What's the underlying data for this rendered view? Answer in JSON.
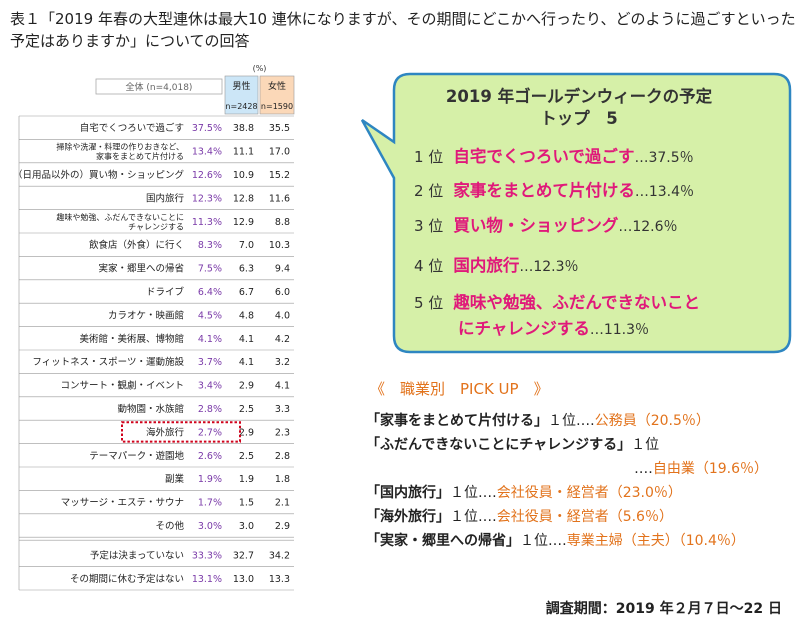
{
  "title": "表１「2019 年春の大型連休は最大10 連休になりますが、その期間にどこかへ行ったり、どのように過ごすといった予定はありますか」についての回答",
  "table": {
    "unit": "(%)",
    "overall_label": "全体 (n=4,018)",
    "male_label": "男性",
    "male_n": "n=2428",
    "female_label": "女性",
    "female_n": "n=1590"
  },
  "chart_data": {
    "type": "table",
    "columns": [
      "全体 (n=4,018)",
      "男性",
      "女性"
    ],
    "rows": [
      {
        "label": [
          "自宅でくつろいで過ごす"
        ],
        "total": "37.5%",
        "male": "38.8",
        "female": "35.5"
      },
      {
        "label": [
          "掃除や洗濯・料理の作りおきなど、",
          "家事をまとめて片付ける"
        ],
        "total": "13.4%",
        "male": "11.1",
        "female": "17.0"
      },
      {
        "label": [
          "（日用品以外の）買い物・ショッピング"
        ],
        "total": "12.6%",
        "male": "10.9",
        "female": "15.2"
      },
      {
        "label": [
          "国内旅行"
        ],
        "total": "12.3%",
        "male": "12.8",
        "female": "11.6"
      },
      {
        "label": [
          "趣味や勉強、ふだんできないことに",
          "チャレンジする"
        ],
        "total": "11.3%",
        "male": "12.9",
        "female": "8.8"
      },
      {
        "label": [
          "飲食店（外食）に行く"
        ],
        "total": "8.3%",
        "male": "7.0",
        "female": "10.3"
      },
      {
        "label": [
          "実家・郷里への帰省"
        ],
        "total": "7.5%",
        "male": "6.3",
        "female": "9.4"
      },
      {
        "label": [
          "ドライブ"
        ],
        "total": "6.4%",
        "male": "6.7",
        "female": "6.0"
      },
      {
        "label": [
          "カラオケ・映画館"
        ],
        "total": "4.5%",
        "male": "4.8",
        "female": "4.0"
      },
      {
        "label": [
          "美術館・美術展、博物館"
        ],
        "total": "4.1%",
        "male": "4.1",
        "female": "4.2"
      },
      {
        "label": [
          "フィットネス・スポーツ・運動施設"
        ],
        "total": "3.7%",
        "male": "4.1",
        "female": "3.2"
      },
      {
        "label": [
          "コンサート・観劇・イベント"
        ],
        "total": "3.4%",
        "male": "2.9",
        "female": "4.1"
      },
      {
        "label": [
          "動物園・水族館"
        ],
        "total": "2.8%",
        "male": "2.5",
        "female": "3.3"
      },
      {
        "label": [
          "海外旅行"
        ],
        "total": "2.7%",
        "male": "2.9",
        "female": "2.3"
      },
      {
        "label": [
          "テーマパーク・遊園地"
        ],
        "total": "2.6%",
        "male": "2.5",
        "female": "2.8"
      },
      {
        "label": [
          "副業"
        ],
        "total": "1.9%",
        "male": "1.9",
        "female": "1.8"
      },
      {
        "label": [
          "マッサージ・エステ・サウナ"
        ],
        "total": "1.7%",
        "male": "1.5",
        "female": "2.1"
      },
      {
        "label": [
          "その他"
        ],
        "total": "3.0%",
        "male": "3.0",
        "female": "2.9"
      },
      {
        "label": [
          "予定は決まっていない"
        ],
        "total": "33.3%",
        "male": "32.7",
        "female": "34.2"
      },
      {
        "label": [
          "その期間に休む予定はない"
        ],
        "total": "13.1%",
        "male": "13.0",
        "female": "13.3"
      }
    ],
    "highlighted_row": "海外旅行"
  },
  "colors": {
    "male_header": "#cce6f7",
    "female_header": "#fbd8b8",
    "pink_text": "#e0197a",
    "orange_text": "#e2731c",
    "purple_text": "#7a3aa8",
    "callout_fill": "#d6f0a8",
    "callout_border": "#2e86c1",
    "highlight_border": "#d0021b"
  },
  "callout": {
    "title_line1": "2019 年ゴールデンウィークの予定",
    "title_line2": "トップ　5",
    "ranks": [
      {
        "pos": "1 位",
        "name": "自宅でくつろいで過ごす",
        "pct": "…37.5％"
      },
      {
        "pos": "2 位",
        "name": "家事をまとめて片付ける",
        "pct": "…13.4％"
      },
      {
        "pos": "3 位",
        "name": "買い物・ショッピング",
        "pct": "…12.6％"
      },
      {
        "pos": "4 位",
        "name": "国内旅行",
        "pct": "…12.3％"
      },
      {
        "pos": "5 位",
        "name": "趣味や勉強、ふだんできないこと",
        "name2": "にチャレンジする",
        "pct": "…11.3％"
      }
    ]
  },
  "pickup": {
    "heading": "《　職業別　PICK UP　》",
    "lines": [
      {
        "q": "「家事をまとめて片付ける」",
        "rank": "１位‥‥",
        "job": "公務員（20.5％）"
      },
      {
        "q": "「ふだんできないことにチャレンジする」",
        "rank": "１位",
        "job": ""
      },
      {
        "q": "",
        "rank": "‥‥",
        "job": "自由業（19.6％）"
      },
      {
        "q": "「国内旅行」",
        "rank": "１位‥‥",
        "job": "会社役員・経営者（23.0％）"
      },
      {
        "q": "「海外旅行」",
        "rank": "１位‥‥",
        "job": "会社役員・経営者（5.6％）"
      },
      {
        "q": "「実家・郷里への帰省」",
        "rank": "１位‥‥",
        "job": "専業主婦（主夫）（10.4％）"
      }
    ]
  },
  "period": "調査期間：2019 年２月７日～22 日"
}
